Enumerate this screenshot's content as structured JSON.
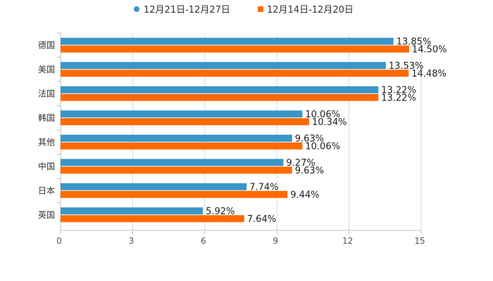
{
  "chart_data": {
    "type": "bar",
    "orientation": "horizontal",
    "categories": [
      "德国",
      "美国",
      "法国",
      "韩国",
      "其他",
      "中国",
      "日本",
      "英国"
    ],
    "series": [
      {
        "name": "12月21日-12月27日",
        "color": "#3a96c8",
        "values": [
          13.85,
          13.53,
          13.22,
          10.06,
          9.63,
          9.27,
          7.74,
          5.92
        ],
        "labels": [
          "13.85%",
          "13.53%",
          "13.22%",
          "10.06%",
          "9.63%",
          "9.27%",
          "7.74%",
          "5.92%"
        ]
      },
      {
        "name": "12月14日-12月20日",
        "color": "#ff6a00",
        "values": [
          14.5,
          14.48,
          13.22,
          10.34,
          10.06,
          9.63,
          9.44,
          7.64
        ],
        "labels": [
          "14.50%",
          "14.48%",
          "13.22%",
          "10.34%",
          "10.06%",
          "9.63%",
          "9.44%",
          "7.64%"
        ]
      }
    ],
    "x_ticks": [
      "0",
      "3",
      "6",
      "9",
      "12",
      "15"
    ],
    "xlim": [
      0,
      15
    ],
    "grid": true,
    "legend": "top-center"
  }
}
